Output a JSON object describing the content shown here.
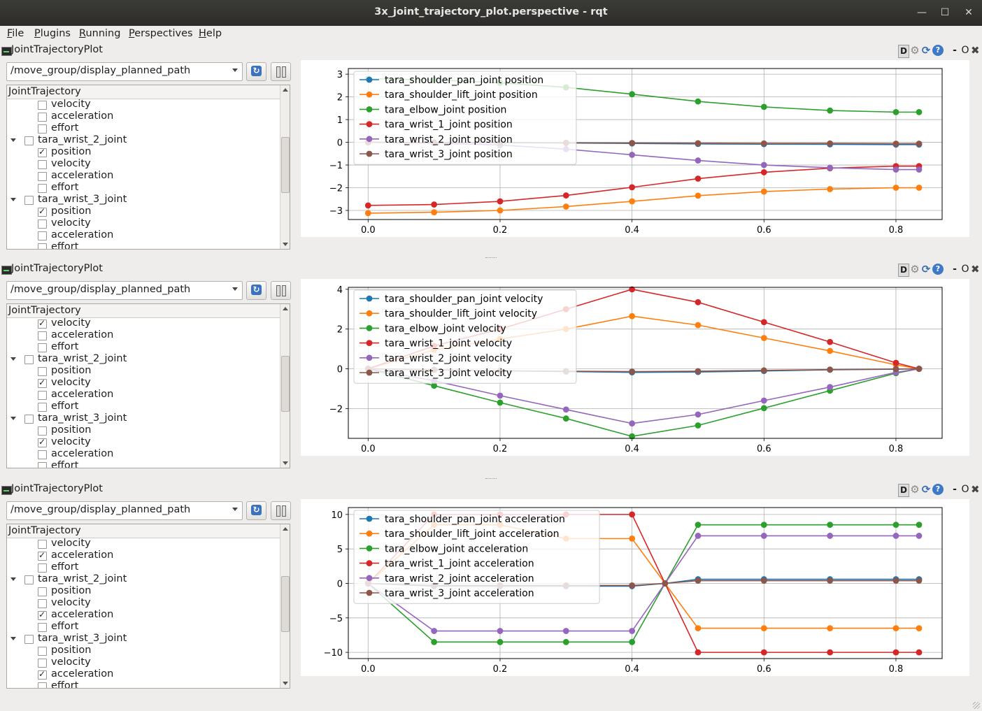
{
  "window": {
    "title": "3x_joint_trajectory_plot.perspective - rqt",
    "controls": {
      "minimize": "—",
      "maximize": "☐",
      "close": "✕"
    }
  },
  "menubar": {
    "items": [
      {
        "key": "F",
        "rest": "ile"
      },
      {
        "key": "P",
        "rest": "lugins"
      },
      {
        "key": "R",
        "rest": "unning"
      },
      {
        "key": "P",
        "rest": "erspectives"
      },
      {
        "key": "H",
        "rest": "elp"
      }
    ]
  },
  "panels": [
    {
      "title": "JointTrajectoryPlot",
      "topic": "/move_group/display_planned_path",
      "tools": {
        "d": "D",
        "gear": "⚙",
        "reload": "⟳",
        "help": "?",
        "min": "-",
        "float": "O",
        "close": "✖"
      },
      "tree_header": "JointTrajectory",
      "scroll": {
        "position": 0.47,
        "visible_fraction": 0.38
      },
      "tree": [
        {
          "label": "velocity",
          "level": 1,
          "checked": false
        },
        {
          "label": "acceleration",
          "level": 1,
          "checked": false
        },
        {
          "label": "effort",
          "level": 1,
          "checked": false
        },
        {
          "label": "tara_wrist_2_joint",
          "level": 0,
          "checked": false,
          "expanded": true
        },
        {
          "label": "position",
          "level": 1,
          "checked": true
        },
        {
          "label": "velocity",
          "level": 1,
          "checked": false
        },
        {
          "label": "acceleration",
          "level": 1,
          "checked": false
        },
        {
          "label": "effort",
          "level": 1,
          "checked": false
        },
        {
          "label": "tara_wrist_3_joint",
          "level": 0,
          "checked": false,
          "expanded": true
        },
        {
          "label": "position",
          "level": 1,
          "checked": true
        },
        {
          "label": "velocity",
          "level": 1,
          "checked": false
        },
        {
          "label": "acceleration",
          "level": 1,
          "checked": false
        },
        {
          "label": "effort",
          "level": 1,
          "checked": false
        }
      ]
    },
    {
      "title": "JointTrajectoryPlot",
      "topic": "/move_group/display_planned_path",
      "tools": {
        "d": "D",
        "gear": "⚙",
        "reload": "⟳",
        "help": "?",
        "min": "-",
        "float": "O",
        "close": "✖"
      },
      "tree_header": "JointTrajectory",
      "scroll": {
        "position": 0.47,
        "visible_fraction": 0.38
      },
      "tree": [
        {
          "label": "velocity",
          "level": 1,
          "checked": true
        },
        {
          "label": "acceleration",
          "level": 1,
          "checked": false
        },
        {
          "label": "effort",
          "level": 1,
          "checked": false
        },
        {
          "label": "tara_wrist_2_joint",
          "level": 0,
          "checked": false,
          "expanded": true
        },
        {
          "label": "position",
          "level": 1,
          "checked": false
        },
        {
          "label": "velocity",
          "level": 1,
          "checked": true
        },
        {
          "label": "acceleration",
          "level": 1,
          "checked": false
        },
        {
          "label": "effort",
          "level": 1,
          "checked": false
        },
        {
          "label": "tara_wrist_3_joint",
          "level": 0,
          "checked": false,
          "expanded": true
        },
        {
          "label": "position",
          "level": 1,
          "checked": false
        },
        {
          "label": "velocity",
          "level": 1,
          "checked": true
        },
        {
          "label": "acceleration",
          "level": 1,
          "checked": false
        },
        {
          "label": "effort",
          "level": 1,
          "checked": false
        }
      ]
    },
    {
      "title": "JointTrajectoryPlot",
      "topic": "/move_group/display_planned_path",
      "tools": {
        "d": "D",
        "gear": "⚙",
        "reload": "⟳",
        "help": "?",
        "min": "-",
        "float": "O",
        "close": "✖"
      },
      "tree_header": "JointTrajectory",
      "scroll": {
        "position": 0.47,
        "visible_fraction": 0.38
      },
      "tree": [
        {
          "label": "velocity",
          "level": 1,
          "checked": false
        },
        {
          "label": "acceleration",
          "level": 1,
          "checked": true
        },
        {
          "label": "effort",
          "level": 1,
          "checked": false
        },
        {
          "label": "tara_wrist_2_joint",
          "level": 0,
          "checked": false,
          "expanded": true
        },
        {
          "label": "position",
          "level": 1,
          "checked": false
        },
        {
          "label": "velocity",
          "level": 1,
          "checked": false
        },
        {
          "label": "acceleration",
          "level": 1,
          "checked": true
        },
        {
          "label": "effort",
          "level": 1,
          "checked": false
        },
        {
          "label": "tara_wrist_3_joint",
          "level": 0,
          "checked": false,
          "expanded": true
        },
        {
          "label": "position",
          "level": 1,
          "checked": false
        },
        {
          "label": "velocity",
          "level": 1,
          "checked": false
        },
        {
          "label": "acceleration",
          "level": 1,
          "checked": true
        },
        {
          "label": "effort",
          "level": 1,
          "checked": false
        }
      ]
    }
  ],
  "chart_data": [
    {
      "type": "line",
      "title": "",
      "xlabel": "",
      "ylabel": "",
      "x": [
        0.0,
        0.1,
        0.2,
        0.3,
        0.4,
        0.5,
        0.6,
        0.7,
        0.8,
        0.835
      ],
      "xlim": [
        -0.03,
        0.87
      ],
      "ylim": [
        -3.4,
        3.25
      ],
      "xticks": [
        0.0,
        0.2,
        0.4,
        0.6,
        0.8
      ],
      "xtick_labels": [
        "0.0",
        "0.2",
        "0.4",
        "0.6",
        "0.8"
      ],
      "yticks": [
        -3,
        -2,
        -1,
        0,
        1,
        2,
        3
      ],
      "ytick_labels": [
        "−3",
        "−2",
        "−1",
        "0",
        "1",
        "2",
        "3"
      ],
      "grid": true,
      "legend_position": "top-left",
      "series": [
        {
          "name": "tara_shoulder_pan_joint position",
          "color": "#1f77b4",
          "values": [
            0.0,
            -0.01,
            -0.02,
            -0.03,
            -0.05,
            -0.07,
            -0.08,
            -0.09,
            -0.1,
            -0.1
          ]
        },
        {
          "name": "tara_shoulder_lift_joint position",
          "color": "#ff7f0e",
          "values": [
            -3.12,
            -3.08,
            -3.0,
            -2.83,
            -2.6,
            -2.35,
            -2.17,
            -2.06,
            -2.0,
            -2.0
          ]
        },
        {
          "name": "tara_elbow_joint position",
          "color": "#2ca02c",
          "values": [
            2.8,
            2.75,
            2.62,
            2.42,
            2.12,
            1.8,
            1.56,
            1.4,
            1.33,
            1.33
          ]
        },
        {
          "name": "tara_wrist_1_joint position",
          "color": "#d62728",
          "values": [
            -2.78,
            -2.74,
            -2.6,
            -2.34,
            -1.98,
            -1.6,
            -1.32,
            -1.14,
            -1.05,
            -1.05
          ]
        },
        {
          "name": "tara_wrist_2_joint position",
          "color": "#9467bd",
          "values": [
            0.0,
            -0.04,
            -0.12,
            -0.3,
            -0.55,
            -0.8,
            -1.0,
            -1.12,
            -1.2,
            -1.2
          ]
        },
        {
          "name": "tara_wrist_3_joint position",
          "color": "#8c564b",
          "values": [
            0.0,
            -0.01,
            -0.01,
            -0.02,
            -0.03,
            -0.04,
            -0.05,
            -0.05,
            -0.06,
            -0.06
          ]
        }
      ]
    },
    {
      "type": "line",
      "title": "",
      "xlabel": "",
      "ylabel": "",
      "x": [
        0.0,
        0.1,
        0.2,
        0.3,
        0.4,
        0.5,
        0.6,
        0.7,
        0.8,
        0.835
      ],
      "xlim": [
        -0.03,
        0.87
      ],
      "ylim": [
        -3.5,
        4.1
      ],
      "xticks": [
        0.0,
        0.2,
        0.4,
        0.6,
        0.8
      ],
      "xtick_labels": [
        "0.0",
        "0.2",
        "0.4",
        "0.6",
        "0.8"
      ],
      "yticks": [
        -2,
        0,
        2,
        4
      ],
      "ytick_labels": [
        "−2",
        "0",
        "2",
        "4"
      ],
      "grid": true,
      "legend_position": "top-left",
      "series": [
        {
          "name": "tara_shoulder_pan_joint velocity",
          "color": "#1f77b4",
          "values": [
            0.0,
            -0.05,
            -0.1,
            -0.14,
            -0.18,
            -0.16,
            -0.11,
            -0.05,
            -0.02,
            0.0
          ]
        },
        {
          "name": "tara_shoulder_lift_joint velocity",
          "color": "#ff7f0e",
          "values": [
            0.0,
            0.95,
            1.5,
            2.0,
            2.65,
            2.2,
            1.55,
            0.9,
            0.2,
            0.0
          ]
        },
        {
          "name": "tara_elbow_joint velocity",
          "color": "#2ca02c",
          "values": [
            0.0,
            -0.85,
            -1.7,
            -2.5,
            -3.4,
            -2.85,
            -1.98,
            -1.1,
            -0.22,
            0.0
          ]
        },
        {
          "name": "tara_wrist_1_joint velocity",
          "color": "#d62728",
          "values": [
            0.0,
            1.15,
            2.0,
            3.0,
            4.0,
            3.35,
            2.35,
            1.35,
            0.3,
            0.0
          ]
        },
        {
          "name": "tara_wrist_2_joint velocity",
          "color": "#9467bd",
          "values": [
            0.0,
            -0.6,
            -1.35,
            -2.05,
            -2.75,
            -2.3,
            -1.6,
            -0.92,
            -0.18,
            0.0
          ]
        },
        {
          "name": "tara_wrist_3_joint velocity",
          "color": "#8c564b",
          "values": [
            0.0,
            -0.05,
            -0.1,
            -0.12,
            -0.14,
            -0.12,
            -0.08,
            -0.04,
            -0.01,
            0.0
          ]
        }
      ]
    },
    {
      "type": "line",
      "title": "",
      "xlabel": "",
      "ylabel": "",
      "x": [
        0.0,
        0.1,
        0.2,
        0.3,
        0.4,
        0.45,
        0.5,
        0.6,
        0.7,
        0.8,
        0.835
      ],
      "xlim": [
        -0.03,
        0.87
      ],
      "ylim": [
        -10.9,
        11.0
      ],
      "xticks": [
        0.0,
        0.2,
        0.4,
        0.6,
        0.8
      ],
      "xtick_labels": [
        "0.0",
        "0.2",
        "0.4",
        "0.6",
        "0.8"
      ],
      "yticks": [
        -10,
        -5,
        0,
        5,
        10
      ],
      "ytick_labels": [
        "−10",
        "−5",
        "0",
        "5",
        "10"
      ],
      "grid": true,
      "legend_position": "top-left",
      "series": [
        {
          "name": "tara_shoulder_pan_joint acceleration",
          "color": "#1f77b4",
          "values": [
            0.0,
            -0.4,
            -0.4,
            -0.4,
            -0.4,
            0.0,
            0.6,
            0.6,
            0.6,
            0.6,
            0.6
          ]
        },
        {
          "name": "tara_shoulder_lift_joint acceleration",
          "color": "#ff7f0e",
          "values": [
            0.0,
            8.5,
            8.5,
            6.5,
            6.5,
            0.0,
            -6.5,
            -6.5,
            -6.5,
            -6.5,
            -6.5
          ]
        },
        {
          "name": "tara_elbow_joint acceleration",
          "color": "#2ca02c",
          "values": [
            0.0,
            -8.5,
            -8.5,
            -8.5,
            -8.5,
            0.0,
            8.5,
            8.5,
            8.5,
            8.5,
            8.5
          ]
        },
        {
          "name": "tara_wrist_1_joint acceleration",
          "color": "#d62728",
          "values": [
            0.0,
            10.0,
            10.0,
            10.0,
            10.0,
            0.0,
            -10.0,
            -10.0,
            -10.0,
            -10.0,
            -10.0
          ]
        },
        {
          "name": "tara_wrist_2_joint acceleration",
          "color": "#9467bd",
          "values": [
            0.0,
            -6.9,
            -6.9,
            -6.9,
            -6.9,
            0.0,
            6.9,
            6.9,
            6.9,
            6.9,
            6.9
          ]
        },
        {
          "name": "tara_wrist_3_joint acceleration",
          "color": "#8c564b",
          "values": [
            0.0,
            -0.3,
            -0.3,
            -0.3,
            -0.3,
            0.0,
            0.4,
            0.4,
            0.4,
            0.4,
            0.4
          ]
        }
      ]
    }
  ]
}
